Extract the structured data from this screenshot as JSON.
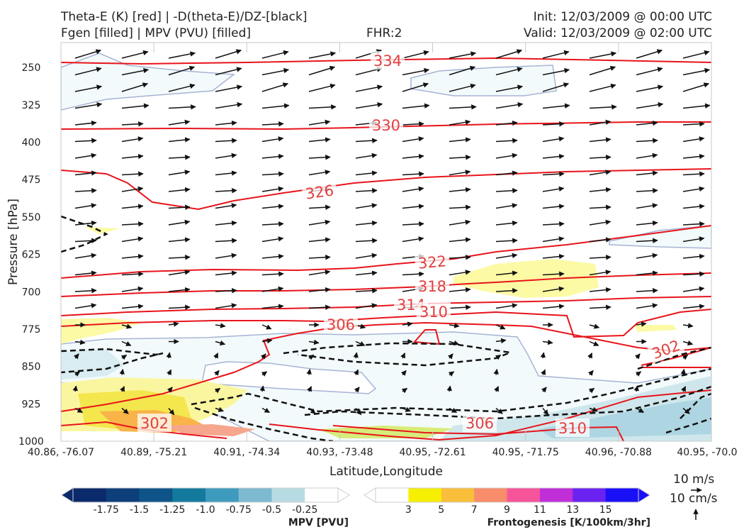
{
  "header": {
    "title_line1": "Theta-E (K) [red] | -D(theta-E)/DZ-[black]",
    "title_line2": "Fgen [filled] | MPV (PVU) [filled]",
    "fhr": "FHR:2",
    "init": "Init: 12/03/2009 @ 00:00 UTC",
    "valid": "Valid: 12/03/2009 @ 02:00 UTC"
  },
  "chart_data": {
    "type": "cross-section",
    "xlabel": "Latitude,Longitude",
    "ylabel": "Pressure [hPa]",
    "x_ticks": [
      "40.86, -76.07",
      "40.89, -75.21",
      "40.91, -74.34",
      "40.93, -73.48",
      "40.95, -72.61",
      "40.95, -71.75",
      "40.96, -70.88",
      "40.95, -70.0"
    ],
    "y_ticks": [
      250,
      325,
      400,
      475,
      550,
      625,
      700,
      775,
      850,
      925,
      1000
    ],
    "ylim": [
      1000,
      200
    ],
    "theta_e_contour_labels": [
      "334",
      "330",
      "326",
      "322",
      "318",
      "314",
      "310",
      "306",
      "302",
      "302",
      "306",
      "310"
    ],
    "colorbars": [
      {
        "name": "MPV [PVU]",
        "ticks": [
          "-1.75",
          "-1.5",
          "-1.25",
          "-1.0",
          "-0.75",
          "-0.5",
          "-0.25"
        ],
        "colors": [
          "#0b2a6b",
          "#0d3f7a",
          "#0e5488",
          "#137a9e",
          "#3f9bbd",
          "#7dbad0",
          "#b7dbe3",
          "#ffffff"
        ]
      },
      {
        "name": "Frontogenesis [K/100km/3hr]",
        "ticks": [
          "3",
          "5",
          "7",
          "9",
          "11",
          "13",
          "15"
        ],
        "colors": [
          "#ffffff",
          "#f6f000",
          "#f9be3a",
          "#f98c6a",
          "#f6559a",
          "#c02ed8",
          "#6a22f0",
          "#1a10f8"
        ]
      }
    ]
  },
  "vector_key": {
    "horizontal": "10 m/s",
    "vertical": "10 cm/s"
  }
}
